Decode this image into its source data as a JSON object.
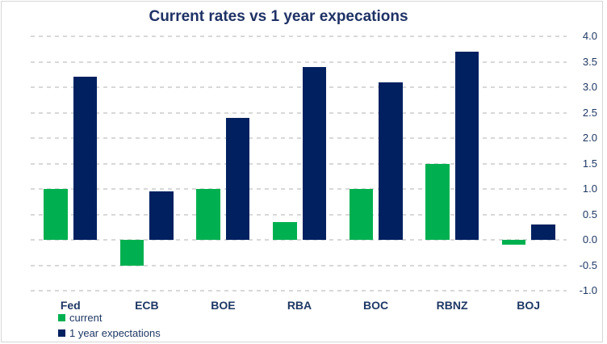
{
  "chart_data": {
    "type": "bar",
    "title": "Current rates vs 1 year expecations",
    "categories": [
      "Fed",
      "ECB",
      "BOE",
      "RBA",
      "BOC",
      "RBNZ",
      "BOJ"
    ],
    "series": [
      {
        "name": "current",
        "color": "#00b050",
        "values": [
          1.0,
          -0.5,
          1.0,
          0.35,
          1.0,
          1.5,
          -0.1
        ]
      },
      {
        "name": "1 year expectations",
        "color": "#002060",
        "values": [
          3.2,
          0.95,
          2.4,
          3.4,
          3.1,
          3.7,
          0.3
        ]
      }
    ],
    "xlabel": "",
    "ylabel": "",
    "ylim": [
      -1.0,
      4.0
    ],
    "ytick_step": 0.5,
    "ytick_labels": [
      "4.0",
      "3.5",
      "3.0",
      "2.5",
      "2.0",
      "1.5",
      "1.0",
      "0.5",
      "0.0",
      "-0.5",
      "-1.0"
    ],
    "axis_side": "right",
    "grid": "horizontal-dashed",
    "gridline_color": "#d8d8d8",
    "legend_position": "bottom-left",
    "text_color": "#1f3864",
    "title_color": "#1f3265"
  }
}
